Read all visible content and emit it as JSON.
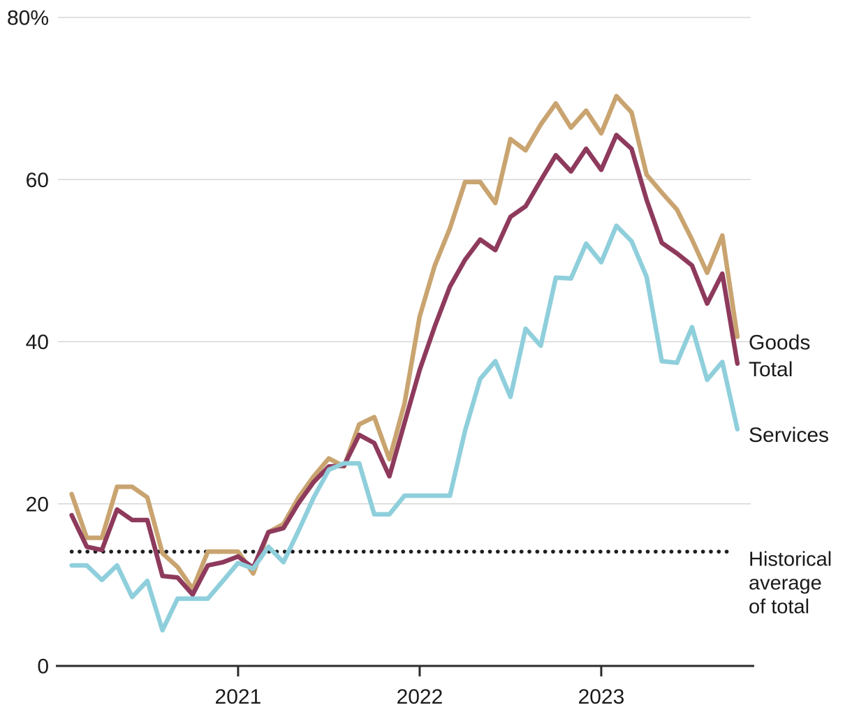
{
  "chart_data": {
    "type": "line",
    "title": "",
    "unit": "%",
    "grid": "horizontal",
    "legend_position": "right-edge-labels",
    "x": [
      "Feb 2020",
      "Mar 2020",
      "Apr 2020",
      "May 2020",
      "Jun 2020",
      "Jul 2020",
      "Aug 2020",
      "Sep 2020",
      "Oct 2020",
      "Nov 2020",
      "Dec 2020",
      "Jan 2021",
      "Feb 2021",
      "Mar 2021",
      "Apr 2021",
      "May 2021",
      "Jun 2021",
      "Jul 2021",
      "Aug 2021",
      "Sep 2021",
      "Oct 2021",
      "Nov 2021",
      "Dec 2021",
      "Jan 2022",
      "Feb 2022",
      "Mar 2022",
      "Apr 2022",
      "May 2022",
      "Jun 2022",
      "Jul 2022",
      "Aug 2022",
      "Sep 2022",
      "Oct 2022",
      "Nov 2022",
      "Dec 2022",
      "Jan 2023",
      "Feb 2023",
      "Mar 2023",
      "Apr 2023",
      "May 2023",
      "Jun 2023",
      "Jul 2023",
      "Aug 2023",
      "Sep 2023",
      "Oct 2023"
    ],
    "series": [
      {
        "name": "Goods",
        "color": "#C9A470",
        "values": [
          21.2,
          15.8,
          15.8,
          22.1,
          22.1,
          20.8,
          13.9,
          12.2,
          9.5,
          14.1,
          14.1,
          14.1,
          11.4,
          16.5,
          17.5,
          20.8,
          23.4,
          25.6,
          24.6,
          29.8,
          30.7,
          25.5,
          32.4,
          43.1,
          49.4,
          54.0,
          59.7,
          59.7,
          57.1,
          65.0,
          63.6,
          66.8,
          69.4,
          66.4,
          68.5,
          65.7,
          70.3,
          68.3,
          60.6,
          58.4,
          56.3,
          52.6,
          48.5,
          53.1,
          40.6
        ]
      },
      {
        "name": "Total",
        "color": "#8E3A5C",
        "values": [
          18.6,
          14.7,
          14.3,
          19.3,
          18.0,
          18.0,
          11.1,
          10.9,
          8.8,
          12.4,
          12.8,
          13.5,
          12.1,
          16.5,
          17.0,
          20.1,
          22.7,
          24.6,
          24.7,
          28.5,
          27.5,
          23.4,
          30.0,
          36.5,
          41.9,
          46.8,
          50.1,
          52.6,
          51.3,
          55.4,
          56.7,
          59.9,
          63.0,
          61.0,
          63.8,
          61.2,
          65.5,
          63.8,
          57.5,
          52.2,
          50.9,
          49.4,
          44.7,
          48.4,
          37.3
        ]
      },
      {
        "name": "Services",
        "color": "#8FCFDC",
        "values": [
          12.4,
          12.4,
          10.6,
          12.4,
          8.5,
          10.5,
          4.4,
          8.3,
          8.3,
          8.3,
          10.5,
          12.7,
          12.0,
          14.7,
          12.8,
          16.7,
          20.8,
          24.2,
          25.0,
          25.0,
          18.7,
          18.7,
          21.0,
          21.0,
          21.0,
          21.0,
          29.0,
          35.4,
          37.6,
          33.2,
          41.6,
          39.5,
          47.9,
          47.8,
          52.1,
          49.8,
          54.3,
          52.4,
          48.0,
          37.6,
          37.4,
          41.8,
          35.3,
          37.5,
          29.2
        ]
      }
    ],
    "reference_line": {
      "value": 14.1,
      "style": "dotted",
      "color": "#1F1F1F",
      "label_lines": [
        "Historical",
        "average",
        "of total"
      ]
    },
    "y_axis": {
      "range": [
        0,
        80
      ],
      "ticks": [
        {
          "label": "80%",
          "value": 80
        },
        {
          "label": "60",
          "value": 60
        },
        {
          "label": "40",
          "value": 40
        },
        {
          "label": "20",
          "value": 20
        },
        {
          "label": "0",
          "value": 0
        }
      ]
    },
    "x_axis": {
      "ticks": [
        {
          "label": "2021",
          "index": 11
        },
        {
          "label": "2022",
          "index": 23
        },
        {
          "label": "2023",
          "index": 35
        }
      ]
    },
    "end_labels": [
      "Goods",
      "Total",
      "Services"
    ]
  },
  "colors": {
    "background": "#FFFFFF",
    "gridline": "#D7D7D7",
    "axis": "#2B2B2B",
    "text": "#1A1A1A",
    "goods": "#C9A470",
    "total": "#8E3A5C",
    "services": "#8FCFDC",
    "reference": "#1F1F1F"
  }
}
